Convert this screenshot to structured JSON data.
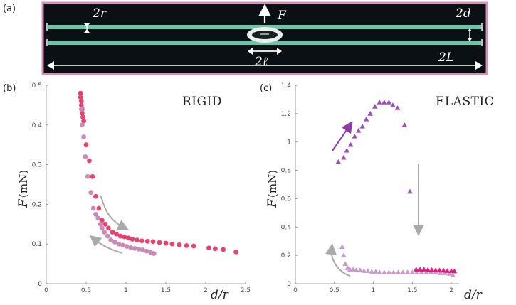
{
  "panel_a": {
    "label": "(a)",
    "labels": {
      "two_r": "2r",
      "force": "F",
      "two_d": "2d",
      "two_ell": "2ℓ",
      "two_L": "2L"
    }
  },
  "colors": {
    "photo_bg": "#0b1014",
    "photo_border": "#d78fb8",
    "rod": "#6fc4a8",
    "rigid_dark": "#e8436f",
    "rigid_light": "#c98ab6",
    "elastic_dark": "#a04fb8",
    "elastic_light": "#c79ac9",
    "elastic_pink": "#e0197a",
    "arrow_gray": "#a9a9a9",
    "arrow_purple": "#8e3aa8"
  },
  "chart_data": [
    {
      "type": "scatter",
      "panel_label": "(b)",
      "annotation": "RIGID",
      "xlabel": "d/r",
      "ylabel": "F",
      "yunit": "(mN)",
      "xlim": [
        0,
        2.5
      ],
      "ylim": [
        0,
        0.5
      ],
      "xticks": [
        "0",
        "0.5",
        "1",
        "1.5",
        "2",
        "2.5"
      ],
      "yticks": [
        "0",
        "0.1",
        "0.2",
        "0.3",
        "0.4",
        "0.5"
      ],
      "series": [
        {
          "x": [
            0.43,
            0.43,
            0.44,
            0.44,
            0.45,
            0.45,
            0.46,
            0.47,
            0.5,
            0.54,
            0.58,
            0.62,
            0.66,
            0.7,
            0.74,
            0.78,
            0.83,
            0.88,
            0.93,
            0.98,
            1.03,
            1.08,
            1.14,
            1.2,
            1.27,
            1.34,
            1.42,
            1.5,
            1.58,
            1.67,
            1.76,
            1.85,
            2.04,
            2.12,
            2.22,
            2.38
          ],
          "y": [
            0.48,
            0.47,
            0.46,
            0.45,
            0.44,
            0.43,
            0.42,
            0.41,
            0.35,
            0.31,
            0.27,
            0.22,
            0.19,
            0.16,
            0.15,
            0.14,
            0.13,
            0.125,
            0.12,
            0.118,
            0.115,
            0.112,
            0.11,
            0.108,
            0.107,
            0.106,
            0.104,
            0.102,
            0.1,
            0.098,
            0.096,
            0.095,
            0.09,
            0.088,
            0.086,
            0.08
          ]
        },
        {
          "x": [
            0.44,
            0.45,
            0.47,
            0.49,
            0.52,
            0.56,
            0.59,
            0.62,
            0.65,
            0.68,
            0.7,
            0.73,
            0.77,
            0.81,
            0.86,
            0.91,
            0.96,
            1.01,
            1.06,
            1.11,
            1.16,
            1.21,
            1.26,
            1.31,
            1.35
          ],
          "y": [
            0.44,
            0.4,
            0.37,
            0.32,
            0.27,
            0.23,
            0.19,
            0.175,
            0.165,
            0.15,
            0.14,
            0.13,
            0.12,
            0.11,
            0.105,
            0.1,
            0.097,
            0.094,
            0.091,
            0.089,
            0.087,
            0.085,
            0.082,
            0.079,
            0.076
          ]
        }
      ]
    },
    {
      "type": "scatter",
      "panel_label": "(c)",
      "annotation": "ELASTIC",
      "xlabel": "d/r",
      "ylabel": "F",
      "yunit": "(mN)",
      "xlim": [
        0,
        2.1
      ],
      "ylim": [
        0,
        1.4
      ],
      "xticks": [
        "0",
        "0.5",
        "1",
        "1.5",
        "2"
      ],
      "yticks": [
        "0",
        "0.2",
        "0.4",
        "0.6",
        "0.8",
        "1",
        "1.2",
        "1.4"
      ],
      "series": [
        {
          "x": [
            0.55,
            0.62,
            0.66,
            0.71,
            0.76,
            0.81,
            0.86,
            0.91,
            0.96,
            1.02,
            1.08,
            1.14,
            1.2,
            1.25,
            1.31,
            1.4,
            1.47
          ],
          "y": [
            0.86,
            0.89,
            0.94,
            0.98,
            1.04,
            1.08,
            1.11,
            1.16,
            1.2,
            1.25,
            1.28,
            1.28,
            1.28,
            1.26,
            1.24,
            1.12,
            0.65
          ]
        },
        {
          "x": [
            0.6,
            0.62,
            0.64,
            0.67,
            0.7,
            0.74,
            0.78,
            0.83,
            0.88,
            0.93,
            0.98,
            1.03,
            1.08,
            1.14,
            1.2,
            1.26,
            1.32,
            1.38,
            1.44,
            1.5,
            1.56,
            1.62,
            1.68,
            1.74,
            1.8,
            1.86,
            1.92,
            1.98,
            2.02
          ],
          "y": [
            0.26,
            0.2,
            0.14,
            0.11,
            0.1,
            0.1,
            0.095,
            0.095,
            0.09,
            0.09,
            0.085,
            0.085,
            0.08,
            0.08,
            0.08,
            0.08,
            0.08,
            0.08,
            0.08,
            0.08,
            0.08,
            0.08,
            0.08,
            0.08,
            0.08,
            0.075,
            0.075,
            0.07,
            0.06
          ]
        },
        {
          "x": [
            1.55,
            1.6,
            1.65,
            1.7,
            1.75,
            1.8,
            1.85,
            1.9,
            1.95,
            2.0,
            2.04
          ],
          "y": [
            0.1,
            0.1,
            0.1,
            0.098,
            0.097,
            0.095,
            0.094,
            0.093,
            0.09,
            0.09,
            0.088
          ]
        }
      ]
    }
  ]
}
